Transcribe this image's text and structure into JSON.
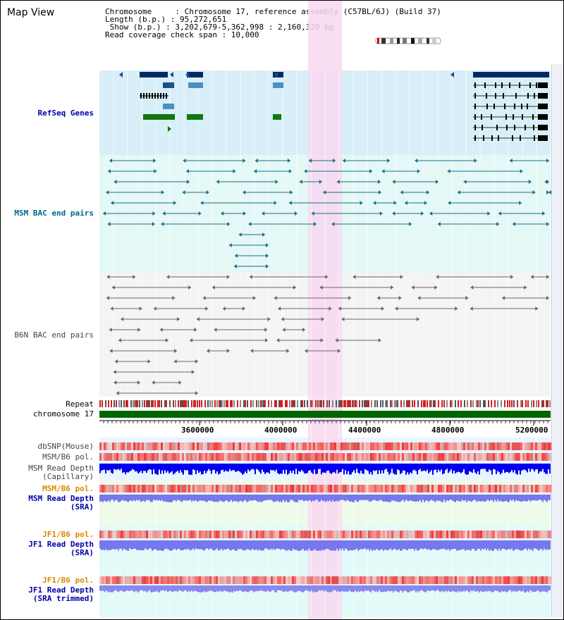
{
  "title": "Map View",
  "info": {
    "line1": "Chromosome     : Chromosome 17, reference assembly (C57BL/6J) (Build 37)",
    "line2": "Length (b.p.) : 95,272,651",
    "line3": " Show (b.p.) : 3,202,679-5,362,998 : 2,160,320 bp",
    "line4": "Read coverage check span : 10,000"
  },
  "tracks": {
    "refseq": "RefSeq Genes",
    "msm_bac": "MSM BAC end pairs",
    "b6n_bac": "B6N BAC end pairs",
    "repeat": "Repeat",
    "chromosome": "chromosome 17",
    "dbsnp": "dbSNP(Mouse)",
    "msm_b6_pol_1": "MSM/B6 pol.",
    "msm_read_depth_cap": "MSM Read Depth\n(Capillary)",
    "msm_b6_pol_2": "MSM/B6 pol.",
    "msm_read_depth_sra": "MSM Read Depth\n(SRA)",
    "jf1_b6_pol_1": "JF1/B6 pol.",
    "jf1_read_depth_sra": "JF1 Read Depth\n(SRA)",
    "jf1_b6_pol_2": "JF1/B6 pol.",
    "jf1_read_depth_trim": "JF1 Read Depth\n(SRA trimmed)"
  },
  "ruler": {
    "ticks": [
      "3600000",
      "4000000",
      "4400000",
      "4800000",
      "5200000"
    ]
  },
  "colors": {
    "refseq_bg": "#d8eef8",
    "bac_msm_bg": "#e4f8f6",
    "bac_b6n_bg": "#f4f4f4",
    "highlight": "#f8d8f0",
    "refseq_label": "#0000aa",
    "msm_label": "#006688",
    "b6n_label": "#444444",
    "orange_label": "#dd8800",
    "blue_label": "#0000aa",
    "chromosome_bar": "#006600",
    "depth_capillary": "#0000ee",
    "depth_sra": "#7777f0"
  }
}
